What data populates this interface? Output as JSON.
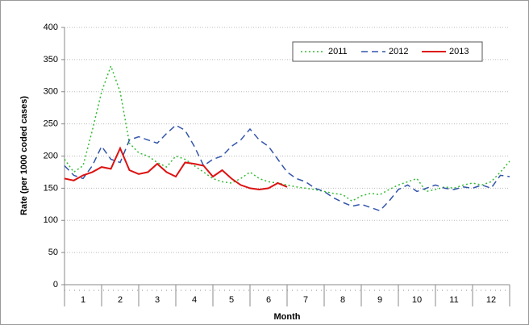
{
  "chart_data": {
    "type": "line",
    "x_label": "Month",
    "y_label": "Rate (per 1000 coded cases)",
    "x": [
      0.5,
      0.75,
      1.0,
      1.25,
      1.5,
      1.75,
      2.0,
      2.25,
      2.5,
      2.75,
      3.0,
      3.25,
      3.5,
      3.75,
      4.0,
      4.25,
      4.5,
      4.75,
      5.0,
      5.25,
      5.5,
      5.75,
      6.0,
      6.25,
      6.5,
      6.75,
      7.0,
      7.25,
      7.5,
      7.75,
      8.0,
      8.25,
      8.5,
      8.75,
      9.0,
      9.25,
      9.5,
      9.75,
      10.0,
      10.25,
      10.5,
      10.75,
      11.0,
      11.25,
      11.5,
      11.75,
      12.0,
      12.25,
      12.5
    ],
    "series": [
      {
        "name": "2011",
        "color": "#33bb33",
        "dash": "2,3",
        "values": [
          195,
          175,
          185,
          240,
          300,
          340,
          300,
          220,
          205,
          200,
          190,
          183,
          200,
          195,
          185,
          175,
          165,
          160,
          158,
          165,
          175,
          165,
          160,
          158,
          155,
          152,
          150,
          148,
          145,
          142,
          140,
          130,
          138,
          142,
          140,
          148,
          155,
          160,
          165,
          145,
          148,
          152,
          150,
          155,
          158,
          155,
          160,
          175,
          192
        ]
      },
      {
        "name": "2012",
        "color": "#3355aa",
        "dash": "8,5",
        "values": [
          185,
          170,
          165,
          185,
          215,
          195,
          190,
          225,
          230,
          225,
          220,
          235,
          248,
          240,
          215,
          185,
          195,
          200,
          215,
          225,
          242,
          225,
          215,
          195,
          175,
          165,
          160,
          150,
          145,
          135,
          128,
          122,
          125,
          120,
          115,
          130,
          148,
          155,
          145,
          150,
          155,
          150,
          148,
          152,
          150,
          155,
          150,
          170,
          168
        ]
      },
      {
        "name": "2013",
        "color": "#dd1111",
        "dash": "none",
        "values": [
          165,
          162,
          170,
          175,
          183,
          180,
          212,
          178,
          172,
          175,
          188,
          175,
          168,
          190,
          188,
          185,
          168,
          178,
          165,
          155,
          150,
          148,
          150,
          158,
          152,
          null,
          null,
          null,
          null,
          null,
          null,
          null,
          null,
          null,
          null,
          null,
          null,
          null,
          null,
          null,
          null,
          null,
          null,
          null,
          null,
          null,
          null,
          null,
          null
        ]
      }
    ],
    "xlim": [
      0.5,
      12.5
    ],
    "xticks": [
      1,
      2,
      3,
      4,
      5,
      6,
      7,
      8,
      9,
      10,
      11,
      12
    ],
    "ylim": [
      0,
      400
    ],
    "yticks": [
      0,
      50,
      100,
      150,
      200,
      250,
      300,
      350,
      400
    ],
    "grid": true,
    "legend": "top-right"
  }
}
